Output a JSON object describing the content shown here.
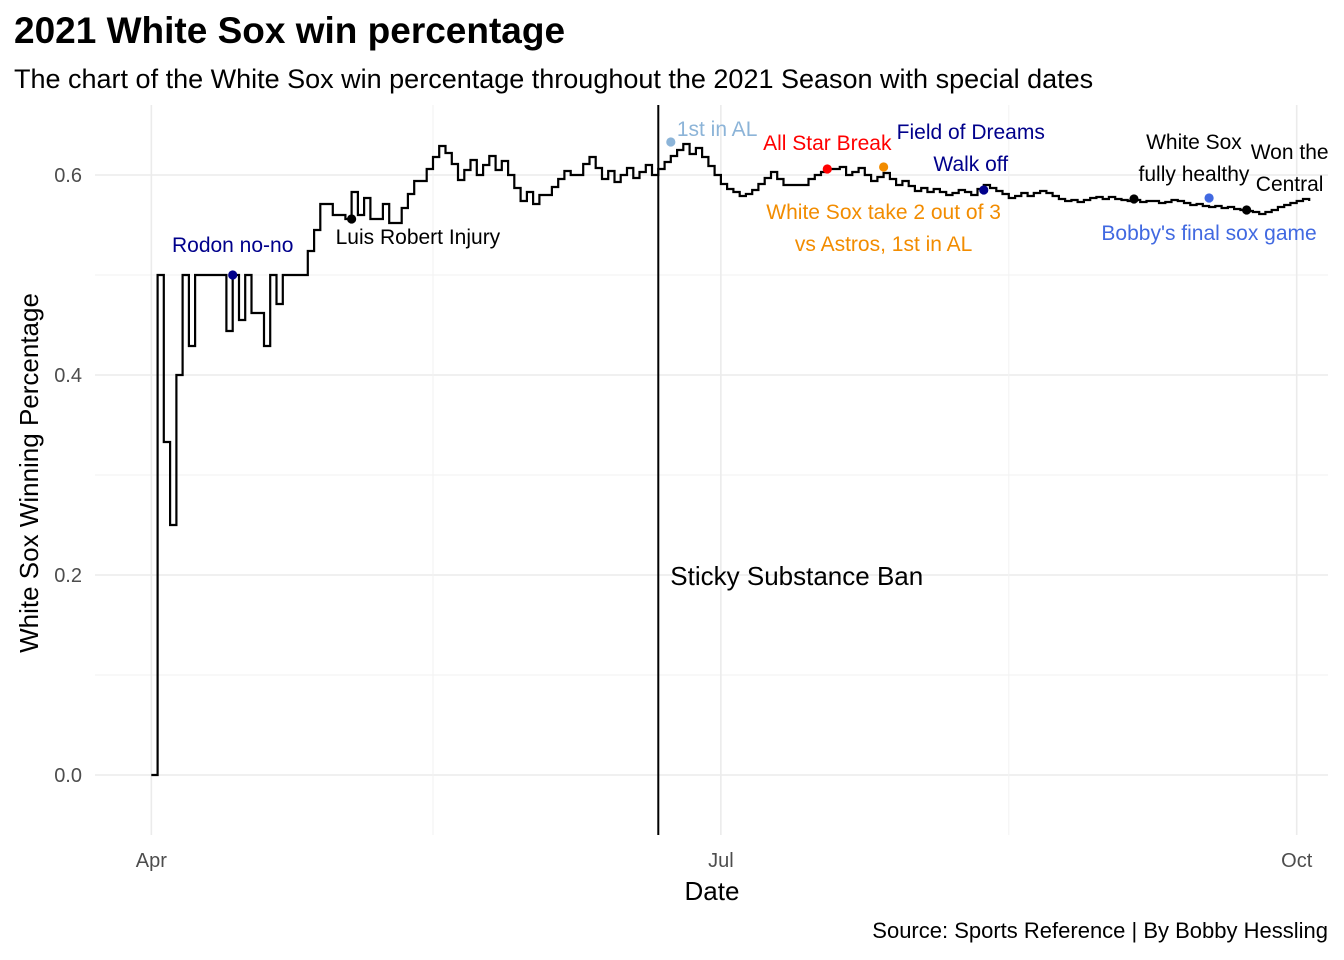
{
  "chart_data": {
    "type": "line",
    "title": "2021 White Sox win percentage",
    "subtitle": "The chart of the White Sox win percentage throughout the 2021 Season with special dates",
    "caption": "Source: Sports Reference | By Bobby Hessling",
    "xlabel": "Date",
    "ylabel": "White Sox Winning Percentage",
    "x_ticks": [
      {
        "date": "2021-04-01",
        "label": "Apr"
      },
      {
        "date": "2021-07-01",
        "label": "Jul"
      },
      {
        "date": "2021-10-01",
        "label": "Oct"
      }
    ],
    "y_ticks": [
      0.0,
      0.2,
      0.4,
      0.6
    ],
    "y_tick_labels": [
      "0.0",
      "0.2",
      "0.4",
      "0.6"
    ],
    "ylim": [
      -0.06,
      0.67
    ],
    "xlim": [
      "2021-03-23",
      "2021-10-06"
    ],
    "grid": true,
    "series": [
      {
        "color": "#000000",
        "step": true,
        "points": [
          [
            "2021-04-01",
            0.0
          ],
          [
            "2021-04-02",
            0.5
          ],
          [
            "2021-04-03",
            0.333
          ],
          [
            "2021-04-04",
            0.25
          ],
          [
            "2021-04-05",
            0.4
          ],
          [
            "2021-04-06",
            0.5
          ],
          [
            "2021-04-07",
            0.429
          ],
          [
            "2021-04-08",
            0.5
          ],
          [
            "2021-04-09",
            0.5
          ],
          [
            "2021-04-10",
            0.5
          ],
          [
            "2021-04-11",
            0.5
          ],
          [
            "2021-04-12",
            0.5
          ],
          [
            "2021-04-13",
            0.444
          ],
          [
            "2021-04-14",
            0.5
          ],
          [
            "2021-04-15",
            0.455
          ],
          [
            "2021-04-16",
            0.5
          ],
          [
            "2021-04-17",
            0.462
          ],
          [
            "2021-04-18",
            0.462
          ],
          [
            "2021-04-19",
            0.429
          ],
          [
            "2021-04-20",
            0.5
          ],
          [
            "2021-04-21",
            0.471
          ],
          [
            "2021-04-22",
            0.5
          ],
          [
            "2021-04-23",
            0.5
          ],
          [
            "2021-04-24",
            0.5
          ],
          [
            "2021-04-25",
            0.5
          ],
          [
            "2021-04-26",
            0.524
          ],
          [
            "2021-04-27",
            0.545
          ],
          [
            "2021-04-28",
            0.571
          ],
          [
            "2021-04-29",
            0.571
          ],
          [
            "2021-04-30",
            0.56
          ],
          [
            "2021-05-01",
            0.56
          ],
          [
            "2021-05-02",
            0.556
          ],
          [
            "2021-05-03",
            0.583
          ],
          [
            "2021-05-04",
            0.56
          ],
          [
            "2021-05-05",
            0.577
          ],
          [
            "2021-05-06",
            0.556
          ],
          [
            "2021-05-07",
            0.556
          ],
          [
            "2021-05-08",
            0.571
          ],
          [
            "2021-05-09",
            0.552
          ],
          [
            "2021-05-10",
            0.552
          ],
          [
            "2021-05-11",
            0.567
          ],
          [
            "2021-05-12",
            0.581
          ],
          [
            "2021-05-13",
            0.594
          ],
          [
            "2021-05-14",
            0.594
          ],
          [
            "2021-05-15",
            0.606
          ],
          [
            "2021-05-16",
            0.618
          ],
          [
            "2021-05-17",
            0.629
          ],
          [
            "2021-05-18",
            0.622
          ],
          [
            "2021-05-19",
            0.611
          ],
          [
            "2021-05-20",
            0.595
          ],
          [
            "2021-05-21",
            0.605
          ],
          [
            "2021-05-22",
            0.615
          ],
          [
            "2021-05-23",
            0.6
          ],
          [
            "2021-05-24",
            0.61
          ],
          [
            "2021-05-25",
            0.619
          ],
          [
            "2021-05-26",
            0.605
          ],
          [
            "2021-05-27",
            0.614
          ],
          [
            "2021-05-28",
            0.6
          ],
          [
            "2021-05-29",
            0.587
          ],
          [
            "2021-05-30",
            0.574
          ],
          [
            "2021-05-31",
            0.583
          ],
          [
            "2021-06-01",
            0.571
          ],
          [
            "2021-06-02",
            0.58
          ],
          [
            "2021-06-03",
            0.58
          ],
          [
            "2021-06-04",
            0.588
          ],
          [
            "2021-06-05",
            0.596
          ],
          [
            "2021-06-06",
            0.604
          ],
          [
            "2021-06-07",
            0.6
          ],
          [
            "2021-06-08",
            0.6
          ],
          [
            "2021-06-09",
            0.611
          ],
          [
            "2021-06-10",
            0.618
          ],
          [
            "2021-06-11",
            0.607
          ],
          [
            "2021-06-12",
            0.596
          ],
          [
            "2021-06-13",
            0.604
          ],
          [
            "2021-06-14",
            0.593
          ],
          [
            "2021-06-15",
            0.6
          ],
          [
            "2021-06-16",
            0.607
          ],
          [
            "2021-06-17",
            0.597
          ],
          [
            "2021-06-18",
            0.603
          ],
          [
            "2021-06-19",
            0.61
          ],
          [
            "2021-06-20",
            0.6
          ],
          [
            "2021-06-21",
            0.606
          ],
          [
            "2021-06-22",
            0.613
          ],
          [
            "2021-06-23",
            0.619
          ],
          [
            "2021-06-24",
            0.625
          ],
          [
            "2021-06-25",
            0.631
          ],
          [
            "2021-06-26",
            0.621
          ],
          [
            "2021-06-27",
            0.627
          ],
          [
            "2021-06-28",
            0.618
          ],
          [
            "2021-06-29",
            0.609
          ],
          [
            "2021-06-30",
            0.6
          ],
          [
            "2021-07-01",
            0.591
          ],
          [
            "2021-07-02",
            0.586
          ],
          [
            "2021-07-03",
            0.583
          ],
          [
            "2021-07-04",
            0.579
          ],
          [
            "2021-07-05",
            0.581
          ],
          [
            "2021-07-06",
            0.585
          ],
          [
            "2021-07-07",
            0.591
          ],
          [
            "2021-07-08",
            0.597
          ],
          [
            "2021-07-09",
            0.603
          ],
          [
            "2021-07-10",
            0.596
          ],
          [
            "2021-07-11",
            0.59
          ],
          [
            "2021-07-12",
            0.59
          ],
          [
            "2021-07-13",
            0.59
          ],
          [
            "2021-07-14",
            0.59
          ],
          [
            "2021-07-15",
            0.596
          ],
          [
            "2021-07-16",
            0.6
          ],
          [
            "2021-07-17",
            0.603
          ],
          [
            "2021-07-18",
            0.606
          ],
          [
            "2021-07-19",
            0.606
          ],
          [
            "2021-07-20",
            0.608
          ],
          [
            "2021-07-21",
            0.6
          ],
          [
            "2021-07-22",
            0.603
          ],
          [
            "2021-07-23",
            0.607
          ],
          [
            "2021-07-24",
            0.6
          ],
          [
            "2021-07-25",
            0.594
          ],
          [
            "2021-07-26",
            0.598
          ],
          [
            "2021-07-27",
            0.602
          ],
          [
            "2021-07-28",
            0.596
          ],
          [
            "2021-07-29",
            0.59
          ],
          [
            "2021-07-30",
            0.594
          ],
          [
            "2021-07-31",
            0.589
          ],
          [
            "2021-08-01",
            0.584
          ],
          [
            "2021-08-02",
            0.587
          ],
          [
            "2021-08-03",
            0.583
          ],
          [
            "2021-08-04",
            0.586
          ],
          [
            "2021-08-05",
            0.583
          ],
          [
            "2021-08-06",
            0.58
          ],
          [
            "2021-08-07",
            0.582
          ],
          [
            "2021-08-08",
            0.585
          ],
          [
            "2021-08-09",
            0.583
          ],
          [
            "2021-08-10",
            0.58
          ],
          [
            "2021-08-11",
            0.586
          ],
          [
            "2021-08-12",
            0.59
          ],
          [
            "2021-08-13",
            0.587
          ],
          [
            "2021-08-14",
            0.584
          ],
          [
            "2021-08-15",
            0.581
          ],
          [
            "2021-08-16",
            0.577
          ],
          [
            "2021-08-17",
            0.579
          ],
          [
            "2021-08-18",
            0.582
          ],
          [
            "2021-08-19",
            0.579
          ],
          [
            "2021-08-20",
            0.582
          ],
          [
            "2021-08-21",
            0.584
          ],
          [
            "2021-08-22",
            0.582
          ],
          [
            "2021-08-23",
            0.579
          ],
          [
            "2021-08-24",
            0.576
          ],
          [
            "2021-08-25",
            0.574
          ],
          [
            "2021-08-26",
            0.575
          ],
          [
            "2021-08-27",
            0.573
          ],
          [
            "2021-08-28",
            0.575
          ],
          [
            "2021-08-29",
            0.577
          ],
          [
            "2021-08-30",
            0.578
          ],
          [
            "2021-08-31",
            0.576
          ],
          [
            "2021-09-01",
            0.578
          ],
          [
            "2021-09-02",
            0.576
          ],
          [
            "2021-09-03",
            0.575
          ],
          [
            "2021-09-04",
            0.574
          ],
          [
            "2021-09-05",
            0.575
          ],
          [
            "2021-09-06",
            0.573
          ],
          [
            "2021-09-07",
            0.574
          ],
          [
            "2021-09-08",
            0.574
          ],
          [
            "2021-09-09",
            0.572
          ],
          [
            "2021-09-10",
            0.573
          ],
          [
            "2021-09-11",
            0.575
          ],
          [
            "2021-09-12",
            0.574
          ],
          [
            "2021-09-13",
            0.572
          ],
          [
            "2021-09-14",
            0.57
          ],
          [
            "2021-09-15",
            0.571
          ],
          [
            "2021-09-16",
            0.569
          ],
          [
            "2021-09-17",
            0.568
          ],
          [
            "2021-09-18",
            0.569
          ],
          [
            "2021-09-19",
            0.567
          ],
          [
            "2021-09-20",
            0.568
          ],
          [
            "2021-09-21",
            0.566
          ],
          [
            "2021-09-22",
            0.565
          ],
          [
            "2021-09-23",
            0.564
          ],
          [
            "2021-09-24",
            0.563
          ],
          [
            "2021-09-25",
            0.561
          ],
          [
            "2021-09-26",
            0.563
          ],
          [
            "2021-09-27",
            0.565
          ],
          [
            "2021-09-28",
            0.568
          ],
          [
            "2021-09-29",
            0.57
          ],
          [
            "2021-09-30",
            0.572
          ],
          [
            "2021-10-01",
            0.574
          ],
          [
            "2021-10-02",
            0.576
          ],
          [
            "2021-10-03",
            0.574
          ]
        ]
      }
    ],
    "reference_lines": [
      {
        "date": "2021-06-21",
        "label": "Sticky Substance Ban",
        "color": "#000000"
      }
    ],
    "annotations": [
      {
        "date": "2021-04-14",
        "value": 0.5,
        "lines": [
          "Rodon no-no"
        ],
        "color": "#00008B"
      },
      {
        "date": "2021-05-03",
        "value": 0.556,
        "lines": [
          "Luis Robert Injury"
        ],
        "color": "#000000"
      },
      {
        "date": "2021-06-23",
        "value": 0.633,
        "lines": [
          "1st in AL"
        ],
        "color": "#8CB4D8"
      },
      {
        "date": "2021-07-18",
        "value": 0.606,
        "lines": [
          "All Star Break"
        ],
        "color": "#FF0000"
      },
      {
        "date": "2021-07-27",
        "value": 0.608,
        "lines": [
          "White Sox take 2 out of 3",
          "vs Astros, 1st in AL"
        ],
        "color": "#F28C00"
      },
      {
        "date": "2021-08-12",
        "value": 0.585,
        "lines": [
          "Field of Dreams",
          "Walk off"
        ],
        "color": "#00008B"
      },
      {
        "date": "2021-09-05",
        "value": 0.576,
        "lines": [
          "White Sox",
          "fully healthy"
        ],
        "color": "#000000"
      },
      {
        "date": "2021-09-17",
        "value": 0.577,
        "lines": [
          "Bobby's final sox game"
        ],
        "color": "#4169E1"
      },
      {
        "date": "2021-09-23",
        "value": 0.565,
        "lines": [
          "Won the",
          "Central"
        ],
        "color": "#000000"
      }
    ]
  }
}
